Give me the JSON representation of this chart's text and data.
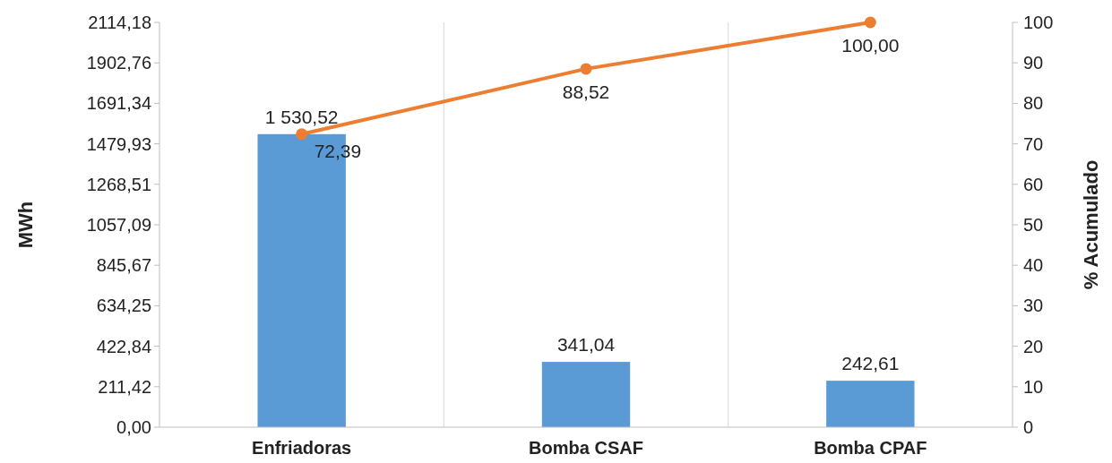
{
  "chart_data": {
    "type": "bar",
    "categories": [
      "Enfriadoras",
      "Bomba CSAF",
      "Bomba CPAF"
    ],
    "series": [
      {
        "color": "#5b9bd5",
        "values": [
          1530.52,
          341.04,
          242.61
        ],
        "value_labels": [
          "1 530,52",
          "341,04",
          "242,61"
        ]
      },
      {
        "type": "line",
        "axis": "y2",
        "color": "#ed7d31",
        "values": [
          72.39,
          88.52,
          100
        ],
        "value_labels": [
          "72,39",
          "88,52",
          "100,00"
        ]
      }
    ],
    "ylabel": "MWh",
    "y2label": "% Acumulado",
    "ylim": [
      0,
      2114.18
    ],
    "yticks": [
      {
        "value": 0,
        "label": "0,00"
      },
      {
        "value": 211.42,
        "label": "211,42"
      },
      {
        "value": 422.84,
        "label": "422,84"
      },
      {
        "value": 634.25,
        "label": "634,25"
      },
      {
        "value": 845.67,
        "label": "845,67"
      },
      {
        "value": 1057.09,
        "label": "1057,09"
      },
      {
        "value": 1268.51,
        "label": "1268,51"
      },
      {
        "value": 1479.93,
        "label": "1479,93"
      },
      {
        "value": 1691.34,
        "label": "1691,34"
      },
      {
        "value": 1902.76,
        "label": "1902,76"
      },
      {
        "value": 2114.18,
        "label": "2114,18"
      }
    ],
    "y2lim": [
      0,
      100
    ],
    "y2ticks": [
      0,
      10,
      20,
      30,
      40,
      50,
      60,
      70,
      80,
      90,
      100
    ],
    "grid": "x",
    "marker": "circle",
    "line_style": "solid"
  }
}
